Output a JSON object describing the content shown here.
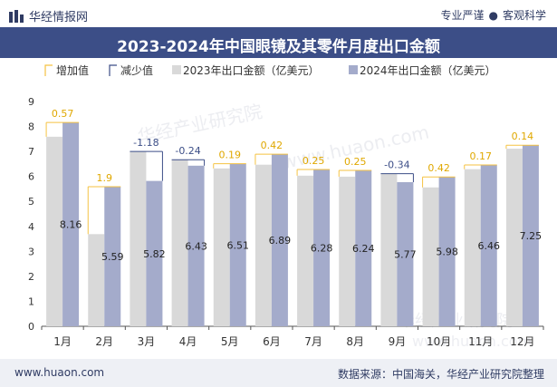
{
  "header": {
    "brand": "华经情报网",
    "tagline_left": "专业严谨",
    "tagline_right": "客观科学"
  },
  "watermarks": [
    "华经产业研究院",
    "www.huaon.com"
  ],
  "chart_data": {
    "type": "bar",
    "title": "2023-2024年中国眼镜及其零件月度出口金额",
    "categories": [
      "1月",
      "2月",
      "3月",
      "4月",
      "5月",
      "6月",
      "7月",
      "8月",
      "9月",
      "10月",
      "11月",
      "12月"
    ],
    "series": [
      {
        "name": "2023年出口金额（亿美元）",
        "values": [
          7.59,
          3.69,
          7.0,
          6.67,
          6.32,
          6.47,
          6.03,
          5.99,
          6.11,
          5.56,
          6.29,
          7.11
        ]
      },
      {
        "name": "2024年出口金额（亿美元）",
        "values": [
          8.16,
          5.59,
          5.82,
          6.43,
          6.51,
          6.89,
          6.28,
          6.24,
          5.77,
          5.98,
          6.46,
          7.25
        ]
      }
    ],
    "changes": [
      0.57,
      1.9,
      -1.18,
      -0.24,
      0.19,
      0.42,
      0.25,
      0.25,
      -0.34,
      0.42,
      0.17,
      0.14
    ],
    "change_labels": [
      "0.57",
      "1.9",
      "-1.18",
      "-0.24",
      "0.19",
      "0.42",
      "0.25",
      "0.25",
      "-0.34",
      "0.42",
      "0.17",
      "0.14"
    ],
    "value_labels": [
      "8.16",
      "5.59",
      "5.82",
      "6.43",
      "6.51",
      "6.89",
      "6.28",
      "6.24",
      "5.77",
      "5.98",
      "6.46",
      "7.25"
    ],
    "legend": [
      {
        "key": "increase",
        "label": "增加值"
      },
      {
        "key": "decrease",
        "label": "减少值"
      },
      {
        "key": "s2023",
        "label": "2023年出口金额（亿美元）"
      },
      {
        "key": "s2024",
        "label": "2024年出口金额（亿美元）"
      }
    ],
    "legend_position": "top",
    "ylim": [
      0,
      9
    ],
    "yticks": [
      0,
      1,
      2,
      3,
      4,
      5,
      6,
      7,
      8,
      9
    ],
    "ytick_labels": [
      "0",
      "1",
      "2",
      "3",
      "4",
      "5",
      "6",
      "7",
      "8",
      "9"
    ],
    "grid": false,
    "colors": {
      "s2023": "#d9d9d9",
      "s2024": "#a4abcb",
      "increase": "#f5c242",
      "decrease": "#3c4e87",
      "increase_text": "#e0a800",
      "decrease_text": "#3c4e87",
      "axis": "#555555"
    }
  },
  "footer": {
    "url": "www.huaon.com",
    "source": "数据来源：中国海关，华经产业研究院整理"
  }
}
